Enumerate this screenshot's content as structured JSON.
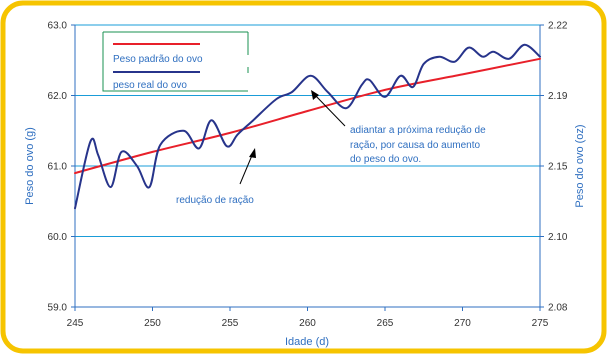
{
  "chart_data": {
    "type": "line",
    "xlabel": "Idade (d)",
    "ylabel_left": "Peso do ovo (g)",
    "ylabel_right": "Peso do ovo (oz)",
    "xlim": [
      245,
      275
    ],
    "ylim": [
      59.0,
      63.0
    ],
    "x_ticks": [
      "245",
      "250",
      "255",
      "260",
      "265",
      "270",
      "275"
    ],
    "y_ticks_left": [
      "59.0",
      "60.0",
      "61.0",
      "62.0",
      "63.0"
    ],
    "y_ticks_right": [
      "2.08",
      "2.10",
      "2.15",
      "2.19",
      "2.22"
    ],
    "grid": "horizontal",
    "legend_position": "top-left",
    "series": [
      {
        "name": "Peso padrão do ovo",
        "color": "#e8202a",
        "x": [
          245,
          250,
          255,
          260,
          265,
          270,
          275
        ],
        "values": [
          60.9,
          61.2,
          61.47,
          61.78,
          62.08,
          62.3,
          62.52
        ]
      },
      {
        "name": "peso real do ovo",
        "color": "#27348b",
        "x": [
          245,
          246,
          246.5,
          247.3,
          248,
          249,
          249.8,
          250.5,
          252,
          253,
          253.8,
          254.8,
          255.5,
          256.5,
          258,
          259,
          260.2,
          261.3,
          262.5,
          263.5,
          264,
          265,
          266,
          266.8,
          267.5,
          268.5,
          269.5,
          270.4,
          271.3,
          272,
          273,
          274,
          275
        ],
        "values": [
          60.4,
          61.35,
          61.15,
          60.7,
          61.2,
          61.0,
          60.7,
          61.3,
          61.5,
          61.25,
          61.65,
          61.28,
          61.45,
          61.65,
          61.95,
          62.05,
          62.28,
          62.05,
          61.82,
          62.15,
          62.22,
          61.98,
          62.28,
          62.12,
          62.45,
          62.55,
          62.48,
          62.68,
          62.55,
          62.62,
          62.52,
          62.72,
          62.55
        ]
      }
    ],
    "annotations": [
      {
        "text": "redução de ração"
      },
      {
        "lines": [
          "adiantar a próxima redução de",
          "ração, por causa do aumento",
          "do peso do ovo."
        ]
      }
    ]
  }
}
